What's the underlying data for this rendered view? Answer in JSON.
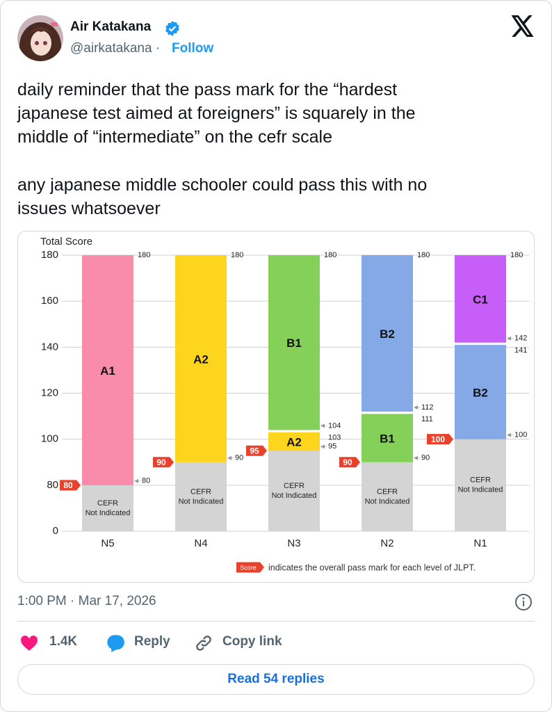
{
  "author": {
    "name": "Air Katakana",
    "handle": "@airkatakana",
    "separator": "·",
    "follow": "Follow"
  },
  "tweet": {
    "paragraphs": [
      [
        "daily reminder that the pass mark for the “hardest",
        "japanese test aimed at foreigners” is squarely in the",
        "middle of “intermediate” on the cefr scale"
      ],
      [
        "any japanese middle schooler could pass this with no",
        "issues whatsoever"
      ]
    ],
    "timestamp": "1:00 PM · Mar 17, 2026"
  },
  "actions": {
    "likes": "1.4K",
    "reply": "Reply",
    "copy_link": "Copy link",
    "read_replies": "Read 54 replies"
  },
  "chart_data": {
    "type": "range_bar",
    "ylabel": "Total Score",
    "ylim": [
      0,
      180
    ],
    "yticks": [
      0,
      80,
      100,
      120,
      140,
      160,
      180
    ],
    "grid": true,
    "axis_break": true,
    "categories": [
      "N5",
      "N4",
      "N3",
      "N2",
      "N1"
    ],
    "pass_marks": [
      80,
      90,
      95,
      90,
      100
    ],
    "pass_mark_color": "#e8412c",
    "unassigned_label": [
      "CEFR",
      "Not Indicated"
    ],
    "unassigned_color": "#d4d4d4",
    "bands": [
      [
        {
          "name": "A1",
          "min": 80,
          "max": 180,
          "color": "#f98bab"
        }
      ],
      [
        {
          "name": "A2",
          "min": 90,
          "max": 180,
          "color": "#fdd51c"
        }
      ],
      [
        {
          "name": "A2",
          "min": 95,
          "max": 103,
          "color": "#fdd51c"
        },
        {
          "name": "B1",
          "min": 104,
          "max": 180,
          "color": "#84d058"
        }
      ],
      [
        {
          "name": "B1",
          "min": 90,
          "max": 111,
          "color": "#84d058"
        },
        {
          "name": "B2",
          "min": 112,
          "max": 180,
          "color": "#84a9e6"
        }
      ],
      [
        {
          "name": "B2",
          "min": 100,
          "max": 141,
          "color": "#84a9e6"
        },
        {
          "name": "C1",
          "min": 142,
          "max": 180,
          "color": "#c75ef8"
        }
      ]
    ],
    "legend": {
      "badge": "Score",
      "text": "indicates the overall pass mark for each level of JLPT."
    }
  }
}
